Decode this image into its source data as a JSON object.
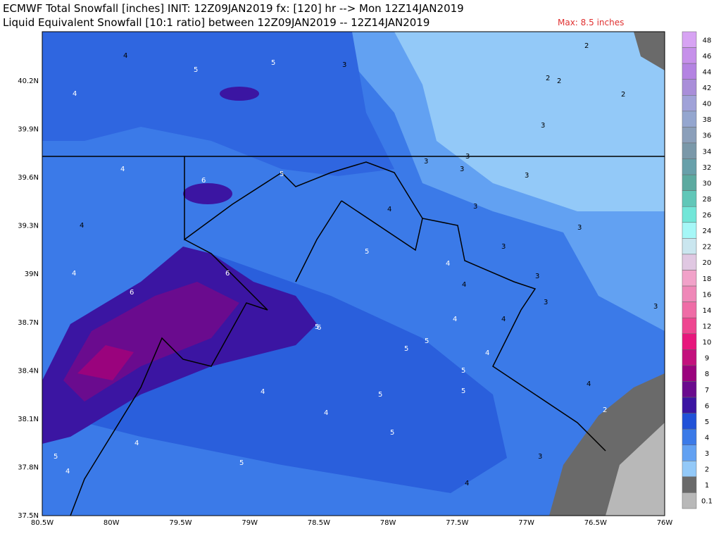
{
  "header": {
    "line1": "ECMWF Total Snowfall [inches] INIT: 12Z09JAN2019 fx: [120] hr --> Mon 12Z14JAN2019",
    "line2": "Liquid Equivalent Snowfall [10:1 ratio] between 12Z09JAN2019 -- 12Z14JAN2019",
    "max": "Max: 8.5 inches"
  },
  "map": {
    "lat_labels": [
      "40.2N",
      "39.9N",
      "39.6N",
      "39.3N",
      "39N",
      "38.7N",
      "38.4N",
      "38.1N",
      "37.8N",
      "37.5N"
    ],
    "lon_labels": [
      "80.5W",
      "80W",
      "79.5W",
      "79W",
      "78.5W",
      "78W",
      "77.5W",
      "77W",
      "76.5W",
      "76W"
    ],
    "contour_labels": [
      "4",
      "5",
      "5",
      "3",
      "2",
      "2",
      "2",
      "2",
      "4",
      "3",
      "3",
      "3",
      "3",
      "6",
      "4",
      "4",
      "5",
      "4",
      "3",
      "3",
      "4",
      "6",
      "5",
      "3",
      "3",
      "6",
      "5",
      "4",
      "4",
      "3",
      "3",
      "6",
      "4",
      "5",
      "5",
      "4",
      "5",
      "5",
      "4",
      "4",
      "4",
      "5",
      "5",
      "4",
      "5",
      "4",
      "3",
      "2",
      "4",
      "5",
      "4",
      "3"
    ]
  },
  "colorbar": {
    "levels": [
      {
        "label": "48",
        "color": "#d7a3f3"
      },
      {
        "label": "46",
        "color": "#c690ea"
      },
      {
        "label": "44",
        "color": "#b483e2"
      },
      {
        "label": "42",
        "color": "#a98ed9"
      },
      {
        "label": "40",
        "color": "#a0a2d8"
      },
      {
        "label": "38",
        "color": "#94a6cf"
      },
      {
        "label": "36",
        "color": "#8b9fba"
      },
      {
        "label": "34",
        "color": "#7a98a9"
      },
      {
        "label": "32",
        "color": "#68a0aa"
      },
      {
        "label": "30",
        "color": "#5caaa0"
      },
      {
        "label": "28",
        "color": "#61c7b8"
      },
      {
        "label": "26",
        "color": "#72e6d8"
      },
      {
        "label": "24",
        "color": "#a5f7f7"
      },
      {
        "label": "22",
        "color": "#cae6ef"
      },
      {
        "label": "20",
        "color": "#e0c8e2"
      },
      {
        "label": "18",
        "color": "#f1a2c9"
      },
      {
        "label": "16",
        "color": "#ef88b8"
      },
      {
        "label": "14",
        "color": "#ef6ca6"
      },
      {
        "label": "12",
        "color": "#ee4690"
      },
      {
        "label": "10",
        "color": "#e7177c"
      },
      {
        "label": "9",
        "color": "#c3117d"
      },
      {
        "label": "8",
        "color": "#9a037d"
      },
      {
        "label": "7",
        "color": "#6a0b8e"
      },
      {
        "label": "6",
        "color": "#3b15a2"
      },
      {
        "label": "5",
        "color": "#2152d8"
      },
      {
        "label": "4",
        "color": "#3b7ae8"
      },
      {
        "label": "3",
        "color": "#62a1f2"
      },
      {
        "label": "2",
        "color": "#93c9f8"
      },
      {
        "label": "1",
        "color": "#6a6a6a"
      },
      {
        "label": "0.1",
        "color": "#b8b8b8"
      }
    ]
  }
}
